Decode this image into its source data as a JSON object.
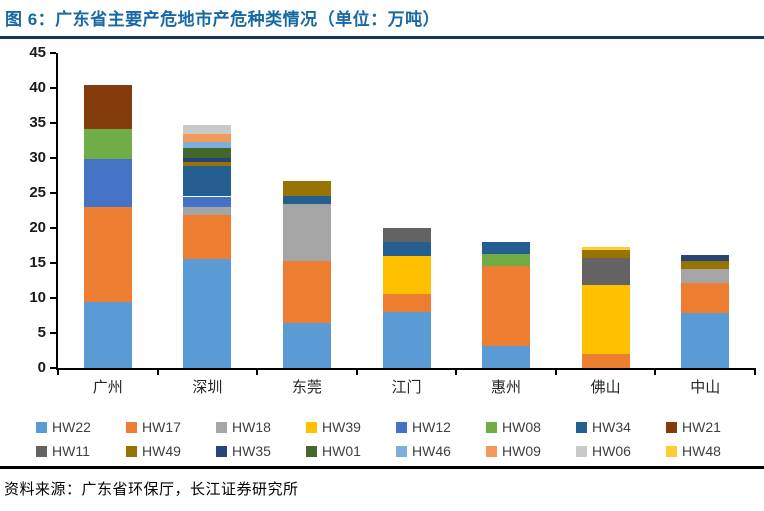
{
  "figure": {
    "title": "图 6：广东省主要产危地市产危种类情况（单位：万吨）",
    "source": "资料来源：广东省环保厅，长江证券研究所",
    "title_color": "#1769A3",
    "title_rule_color": "#17375E",
    "footer_rule_color": "#000000"
  },
  "chart_data": {
    "type": "bar",
    "stacked": true,
    "title": "广东省主要产危地市产危种类情况",
    "unit_label": "万吨",
    "xlabel": "",
    "ylabel": "",
    "ylim": [
      0,
      45
    ],
    "ytick_step": 5,
    "ytick_labels": [
      "0",
      "5",
      "10",
      "15",
      "20",
      "25",
      "30",
      "35",
      "40",
      "45"
    ],
    "grid": false,
    "legend_position": "bottom",
    "categories": [
      "广州",
      "深圳",
      "东莞",
      "江门",
      "惠州",
      "佛山",
      "中山"
    ],
    "series": [
      {
        "name": "HW22",
        "color": "#5B9BD5",
        "values": [
          9.5,
          15.6,
          6.4,
          8.0,
          3.2,
          0,
          7.8
        ]
      },
      {
        "name": "HW17",
        "color": "#ED7D31",
        "values": [
          13.5,
          6.3,
          8.9,
          2.6,
          11.4,
          2.0,
          4.3
        ]
      },
      {
        "name": "HW18",
        "color": "#A5A5A5",
        "values": [
          0,
          1.1,
          8.1,
          0,
          0,
          0,
          2.1
        ]
      },
      {
        "name": "HW39",
        "color": "#FFC000",
        "values": [
          0,
          0,
          0,
          5.4,
          0,
          9.9,
          0
        ]
      },
      {
        "name": "HW12",
        "color": "#4472C4",
        "values": [
          6.8,
          1.5,
          0,
          0,
          0,
          0,
          0
        ]
      },
      {
        "name": "HW08",
        "color": "#70AD47",
        "values": [
          4.3,
          0,
          0,
          0,
          1.7,
          0,
          0
        ]
      },
      {
        "name": "HW34",
        "color": "#255E91",
        "values": [
          0,
          4.3,
          1.2,
          2.0,
          1.7,
          0,
          0
        ]
      },
      {
        "name": "HW21",
        "color": "#843C0C",
        "values": [
          6.3,
          0,
          0,
          0,
          0,
          0,
          0
        ]
      },
      {
        "name": "HW11",
        "color": "#636363",
        "values": [
          0,
          0,
          0,
          2.0,
          0,
          3.8,
          0
        ]
      },
      {
        "name": "HW49",
        "color": "#997300",
        "values": [
          0,
          0.7,
          2.1,
          0,
          0,
          1.1,
          1.1
        ]
      },
      {
        "name": "HW35",
        "color": "#264478",
        "values": [
          0,
          0.5,
          0,
          0,
          0,
          0,
          0.8
        ]
      },
      {
        "name": "HW01",
        "color": "#43682B",
        "values": [
          0,
          1.4,
          0,
          0,
          0,
          0,
          0
        ]
      },
      {
        "name": "HW46",
        "color": "#7CAFDD",
        "values": [
          0,
          0.9,
          0,
          0,
          0,
          0,
          0
        ]
      },
      {
        "name": "HW09",
        "color": "#F4995C",
        "values": [
          0,
          1.1,
          0,
          0,
          0,
          0,
          0
        ]
      },
      {
        "name": "HW06",
        "color": "#C9C9C9",
        "values": [
          0,
          1.3,
          0,
          0,
          0,
          0,
          0
        ]
      },
      {
        "name": "HW48",
        "color": "#FFCD33",
        "values": [
          0,
          0,
          0,
          0,
          0,
          0.5,
          0
        ]
      }
    ],
    "totals": [
      40.4,
      34.7,
      26.7,
      20.0,
      18.0,
      17.3,
      16.1
    ]
  }
}
